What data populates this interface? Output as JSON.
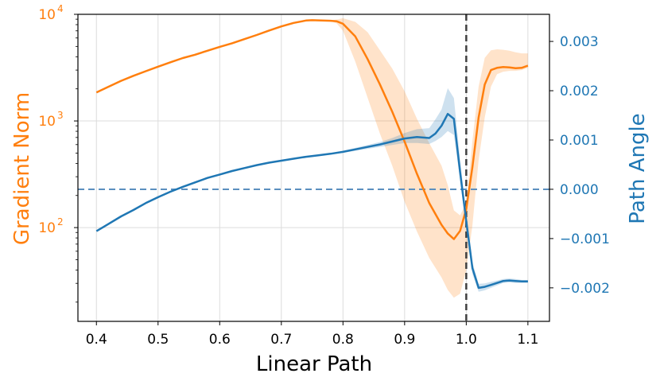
{
  "chart_data": {
    "type": "line",
    "xlabel": "Linear Path",
    "ylabel_left": "Gradient Norm",
    "ylabel_right": "Path Angle",
    "colors": {
      "left": "#ff7f0e",
      "right": "#1f77b4",
      "vline": "#404040",
      "hline": "#5b8fbf"
    },
    "xlim": [
      0.37,
      1.135
    ],
    "ylim_left": [
      13.2,
      10000
    ],
    "yscale_left": "log",
    "ylim_right": [
      -0.00268,
      0.00355
    ],
    "grid": true,
    "x_ticks": [
      "0.4",
      "0.5",
      "0.6",
      "0.7",
      "0.8",
      "0.9",
      "1.0",
      "1.1"
    ],
    "x_tick_values": [
      0.4,
      0.5,
      0.6,
      0.7,
      0.8,
      0.9,
      1.0,
      1.1
    ],
    "left_ticks": [
      {
        "base": "10",
        "exp": "2",
        "value": 100
      },
      {
        "base": "10",
        "exp": "3",
        "value": 1000
      },
      {
        "base": "10",
        "exp": "4",
        "value": 10000
      }
    ],
    "right_ticks": [
      "−0.002",
      "−0.001",
      "0.000",
      "0.001",
      "0.002",
      "0.003"
    ],
    "right_tick_values": [
      -0.002,
      -0.001,
      0.0,
      0.001,
      0.002,
      0.003
    ],
    "vline_x": 1.0,
    "hline_right_y": 0.0,
    "series": [
      {
        "name": "Gradient Norm",
        "axis": "left",
        "x": [
          0.4,
          0.42,
          0.44,
          0.46,
          0.48,
          0.5,
          0.52,
          0.54,
          0.56,
          0.58,
          0.6,
          0.62,
          0.64,
          0.66,
          0.68,
          0.7,
          0.72,
          0.74,
          0.75,
          0.76,
          0.78,
          0.79,
          0.8,
          0.82,
          0.84,
          0.86,
          0.88,
          0.9,
          0.92,
          0.94,
          0.96,
          0.97,
          0.98,
          0.99,
          1.0,
          1.01,
          1.02,
          1.03,
          1.04,
          1.05,
          1.06,
          1.07,
          1.08,
          1.09,
          1.1
        ],
        "y": [
          1850,
          2100,
          2380,
          2650,
          2930,
          3230,
          3550,
          3890,
          4180,
          4550,
          4950,
          5350,
          5850,
          6400,
          7050,
          7700,
          8300,
          8750,
          8800,
          8770,
          8700,
          8600,
          8150,
          6200,
          3800,
          2200,
          1220,
          640,
          320,
          170,
          106,
          88,
          78,
          93,
          150,
          370,
          1080,
          2200,
          3000,
          3150,
          3200,
          3180,
          3120,
          3150,
          3300
        ],
        "band_low": [
          1850,
          2100,
          2380,
          2650,
          2930,
          3230,
          3550,
          3890,
          4180,
          4550,
          4950,
          5350,
          5850,
          6400,
          7050,
          7700,
          8300,
          8750,
          8800,
          8770,
          8650,
          8200,
          7000,
          3600,
          1650,
          760,
          380,
          175,
          92,
          52,
          34,
          26,
          22,
          24,
          40,
          105,
          430,
          1080,
          2100,
          2750,
          2900,
          2950,
          2950,
          3000,
          3150
        ],
        "band_high": [
          1850,
          2100,
          2380,
          2650,
          2930,
          3230,
          3550,
          3890,
          4180,
          4550,
          4950,
          5350,
          5850,
          6400,
          7050,
          7700,
          8300,
          8750,
          8800,
          8770,
          8750,
          8950,
          9200,
          8500,
          6800,
          4600,
          3100,
          1900,
          1050,
          620,
          380,
          250,
          145,
          130,
          170,
          650,
          2100,
          3900,
          4600,
          4700,
          4650,
          4550,
          4400,
          4300,
          4300
        ]
      },
      {
        "name": "Path Angle",
        "axis": "right",
        "x": [
          0.4,
          0.42,
          0.44,
          0.46,
          0.48,
          0.5,
          0.52,
          0.54,
          0.56,
          0.58,
          0.6,
          0.62,
          0.64,
          0.66,
          0.68,
          0.7,
          0.72,
          0.74,
          0.76,
          0.78,
          0.8,
          0.82,
          0.84,
          0.86,
          0.88,
          0.9,
          0.92,
          0.94,
          0.95,
          0.96,
          0.97,
          0.98,
          0.99,
          1.0,
          1.01,
          1.02,
          1.03,
          1.04,
          1.05,
          1.06,
          1.07,
          1.08,
          1.09,
          1.1
        ],
        "y": [
          -0.00085,
          -0.0007,
          -0.00055,
          -0.00042,
          -0.00028,
          -0.00016,
          -5e-05,
          5e-05,
          0.00014,
          0.00023,
          0.0003,
          0.00037,
          0.00043,
          0.00049,
          0.00054,
          0.00058,
          0.00062,
          0.00066,
          0.00069,
          0.00072,
          0.00076,
          0.00081,
          0.00086,
          0.00091,
          0.00097,
          0.00103,
          0.00106,
          0.00104,
          0.00113,
          0.00129,
          0.00153,
          0.00143,
          0.00035,
          -0.00065,
          -0.0016,
          -0.002,
          -0.00198,
          -0.00194,
          -0.0019,
          -0.00186,
          -0.00185,
          -0.00186,
          -0.00187,
          -0.00187
        ],
        "band_low": [
          -0.00085,
          -0.0007,
          -0.00055,
          -0.00042,
          -0.00028,
          -0.00016,
          -5e-05,
          5e-05,
          0.00014,
          0.00023,
          0.0003,
          0.00037,
          0.00043,
          0.00049,
          0.00054,
          0.00058,
          0.00062,
          0.00066,
          0.00069,
          0.00072,
          0.00074,
          0.00078,
          0.00082,
          0.00086,
          0.0009,
          0.00094,
          0.00094,
          0.00092,
          0.00098,
          0.00106,
          0.00118,
          0.0011,
          0.0002,
          -0.0008,
          -0.00172,
          -0.00208,
          -0.00205,
          -0.002,
          -0.00195,
          -0.0019,
          -0.00189,
          -0.0019,
          -0.0019,
          -0.0019
        ],
        "band_high": [
          -0.00085,
          -0.0007,
          -0.00055,
          -0.00042,
          -0.00028,
          -0.00016,
          -5e-05,
          5e-05,
          0.00014,
          0.00023,
          0.0003,
          0.00037,
          0.00043,
          0.00049,
          0.00054,
          0.00058,
          0.00062,
          0.00066,
          0.00069,
          0.00072,
          0.00078,
          0.00084,
          0.0009,
          0.00096,
          0.00104,
          0.00114,
          0.00122,
          0.00124,
          0.00142,
          0.00162,
          0.00205,
          0.00185,
          0.0006,
          -0.0005,
          -0.00148,
          -0.00192,
          -0.00191,
          -0.00188,
          -0.00185,
          -0.00182,
          -0.00181,
          -0.00182,
          -0.00184,
          -0.00184
        ]
      }
    ]
  }
}
